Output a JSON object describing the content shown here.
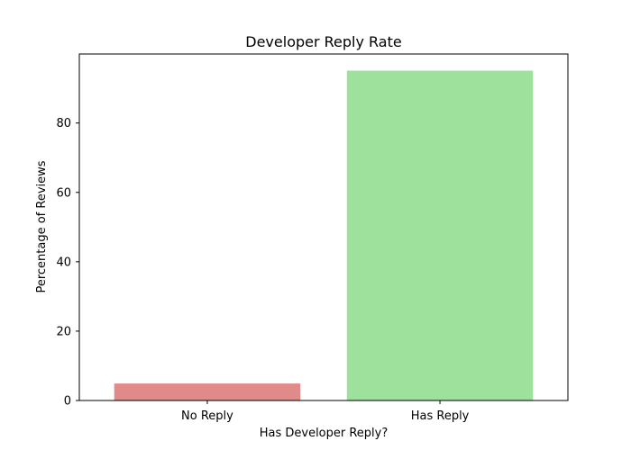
{
  "chart_data": {
    "type": "bar",
    "title": "Developer Reply Rate",
    "xlabel": "Has Developer Reply?",
    "ylabel": "Percentage of Reviews",
    "categories": [
      "No Reply",
      "Has Reply"
    ],
    "values": [
      4.9,
      95.1
    ],
    "colors": [
      "#e08a89",
      "#9de19c"
    ],
    "ylim": [
      0,
      99.9
    ],
    "yticks": [
      0,
      20,
      40,
      60,
      80
    ],
    "grid": false,
    "legend": "none"
  }
}
